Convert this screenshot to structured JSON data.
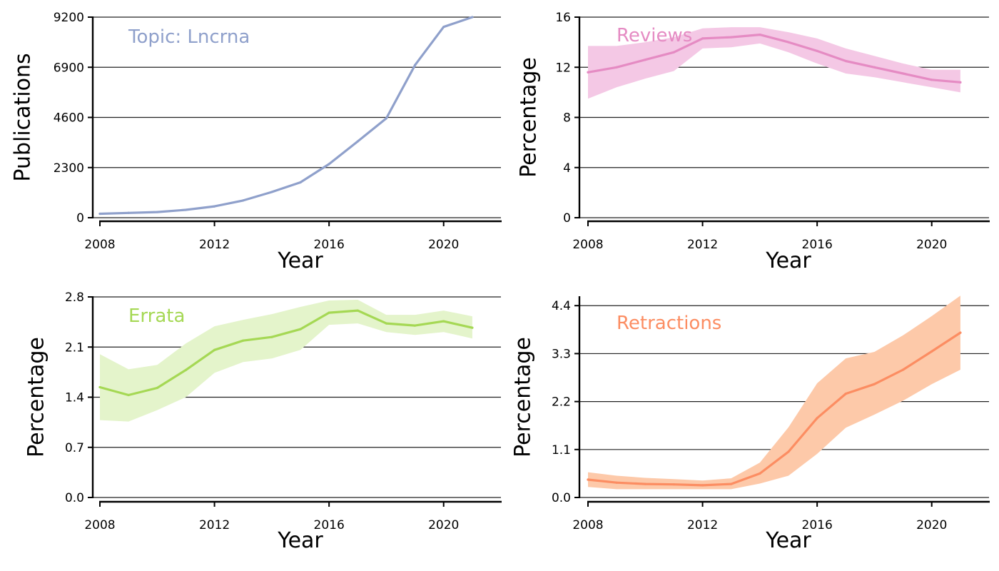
{
  "chart_data": [
    {
      "id": "publications",
      "type": "line",
      "title": "Topic: Lncrna",
      "xlabel": "Year",
      "ylabel": "Publications",
      "xlim": [
        2008,
        2022
      ],
      "xticks": [
        2008,
        2012,
        2016,
        2020
      ],
      "ylim": [
        0,
        9200
      ],
      "yticks": [
        "0",
        "2300",
        "4600",
        "6900",
        "9200"
      ],
      "grid": "horizontal",
      "color": "#8fa0cb",
      "x": [
        2008,
        2009,
        2010,
        2011,
        2012,
        2013,
        2014,
        2015,
        2016,
        2017,
        2018,
        2019,
        2020,
        2021
      ],
      "y": [
        180,
        220,
        260,
        360,
        520,
        790,
        1180,
        1620,
        2460,
        3500,
        4560,
        7000,
        8750,
        9200
      ]
    },
    {
      "id": "reviews",
      "type": "area",
      "title": "Reviews",
      "xlabel": "Year",
      "ylabel": "Percentage",
      "xlim": [
        2008,
        2022
      ],
      "xticks": [
        2008,
        2012,
        2016,
        2020
      ],
      "ylim": [
        0,
        16
      ],
      "yticks": [
        "0",
        "4",
        "8",
        "12",
        "16"
      ],
      "grid": "horizontal",
      "color": "#e58bc3",
      "band_color": "#f4c8e5",
      "x": [
        2008,
        2009,
        2010,
        2011,
        2012,
        2013,
        2014,
        2015,
        2016,
        2017,
        2018,
        2019,
        2020,
        2021
      ],
      "y": [
        11.6,
        12.0,
        12.6,
        13.2,
        14.3,
        14.4,
        14.6,
        14.0,
        13.3,
        12.5,
        12.0,
        11.5,
        11.0,
        10.8
      ],
      "lower": [
        9.5,
        10.4,
        11.1,
        11.7,
        13.5,
        13.6,
        13.9,
        13.2,
        12.3,
        11.5,
        11.2,
        10.8,
        10.4,
        10.0
      ],
      "upper": [
        13.7,
        13.7,
        14.0,
        14.4,
        15.1,
        15.2,
        15.2,
        14.8,
        14.3,
        13.5,
        12.9,
        12.3,
        11.8,
        11.8
      ]
    },
    {
      "id": "errata",
      "type": "area",
      "title": "Errata",
      "xlabel": "Year",
      "ylabel": "Percentage",
      "xlim": [
        2008,
        2022
      ],
      "xticks": [
        2008,
        2012,
        2016,
        2020
      ],
      "ylim": [
        0,
        2.8
      ],
      "yticks": [
        "0.0",
        "0.7",
        "1.4",
        "2.1",
        "2.8"
      ],
      "grid": "horizontal",
      "color": "#a5d854",
      "band_color": "#e4f4cb",
      "x": [
        2008,
        2009,
        2010,
        2011,
        2012,
        2013,
        2014,
        2015,
        2016,
        2017,
        2018,
        2019,
        2020,
        2021
      ],
      "y": [
        1.54,
        1.43,
        1.53,
        1.78,
        2.06,
        2.19,
        2.24,
        2.35,
        2.58,
        2.61,
        2.43,
        2.4,
        2.46,
        2.37
      ],
      "lower": [
        1.08,
        1.06,
        1.22,
        1.4,
        1.74,
        1.89,
        1.94,
        2.06,
        2.41,
        2.43,
        2.31,
        2.27,
        2.31,
        2.22
      ],
      "upper": [
        2.0,
        1.79,
        1.85,
        2.15,
        2.39,
        2.48,
        2.56,
        2.66,
        2.75,
        2.76,
        2.55,
        2.55,
        2.61,
        2.53
      ]
    },
    {
      "id": "retractions",
      "type": "area",
      "title": "Retractions",
      "xlabel": "Year",
      "ylabel": "Percentage",
      "xlim": [
        2008,
        2022
      ],
      "xticks": [
        2008,
        2012,
        2016,
        2020
      ],
      "ylim": [
        0,
        4.6
      ],
      "yticks": [
        "0.0",
        "1.1",
        "2.2",
        "3.3",
        "4.4"
      ],
      "grid": "horizontal",
      "color": "#fc8d62",
      "band_color": "#fdc9a9",
      "x": [
        2008,
        2009,
        2010,
        2011,
        2012,
        2013,
        2014,
        2015,
        2016,
        2017,
        2018,
        2019,
        2020,
        2021
      ],
      "y": [
        0.41,
        0.34,
        0.31,
        0.3,
        0.28,
        0.31,
        0.55,
        1.05,
        1.82,
        2.38,
        2.6,
        2.93,
        3.35,
        3.78
      ],
      "lower": [
        0.24,
        0.19,
        0.19,
        0.19,
        0.19,
        0.19,
        0.32,
        0.5,
        1.0,
        1.6,
        1.9,
        2.22,
        2.6,
        2.93
      ],
      "upper": [
        0.58,
        0.5,
        0.45,
        0.42,
        0.39,
        0.44,
        0.8,
        1.61,
        2.62,
        3.19,
        3.34,
        3.72,
        4.16,
        4.63
      ]
    }
  ]
}
